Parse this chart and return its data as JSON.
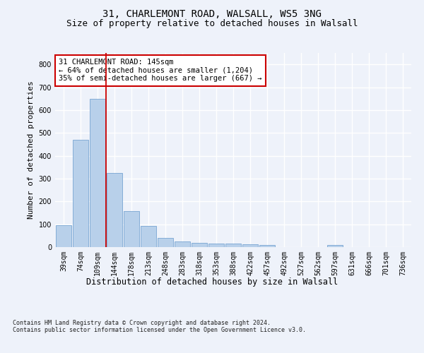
{
  "title1": "31, CHARLEMONT ROAD, WALSALL, WS5 3NG",
  "title2": "Size of property relative to detached houses in Walsall",
  "xlabel": "Distribution of detached houses by size in Walsall",
  "ylabel": "Number of detached properties",
  "footnote": "Contains HM Land Registry data © Crown copyright and database right 2024.\nContains public sector information licensed under the Open Government Licence v3.0.",
  "categories": [
    "39sqm",
    "74sqm",
    "109sqm",
    "144sqm",
    "178sqm",
    "213sqm",
    "248sqm",
    "283sqm",
    "318sqm",
    "353sqm",
    "388sqm",
    "422sqm",
    "457sqm",
    "492sqm",
    "527sqm",
    "562sqm",
    "597sqm",
    "631sqm",
    "666sqm",
    "701sqm",
    "736sqm"
  ],
  "values": [
    95,
    470,
    648,
    325,
    157,
    92,
    40,
    25,
    18,
    15,
    14,
    13,
    10,
    0,
    0,
    0,
    8,
    0,
    0,
    0,
    0
  ],
  "bar_color": "#b8d0ea",
  "bar_edge_color": "#6699cc",
  "vline_color": "#cc0000",
  "annotation_text": "31 CHARLEMONT ROAD: 145sqm\n← 64% of detached houses are smaller (1,204)\n35% of semi-detached houses are larger (667) →",
  "annotation_box_color": "#ffffff",
  "annotation_box_edge": "#cc0000",
  "ylim": [
    0,
    850
  ],
  "yticks": [
    0,
    100,
    200,
    300,
    400,
    500,
    600,
    700,
    800
  ],
  "bg_color": "#eef2fa",
  "plot_bg_color": "#eef2fa",
  "grid_color": "#ffffff",
  "title1_fontsize": 10,
  "title2_fontsize": 9,
  "xlabel_fontsize": 8.5,
  "ylabel_fontsize": 8,
  "tick_fontsize": 7,
  "annotation_fontsize": 7.5,
  "footnote_fontsize": 6
}
